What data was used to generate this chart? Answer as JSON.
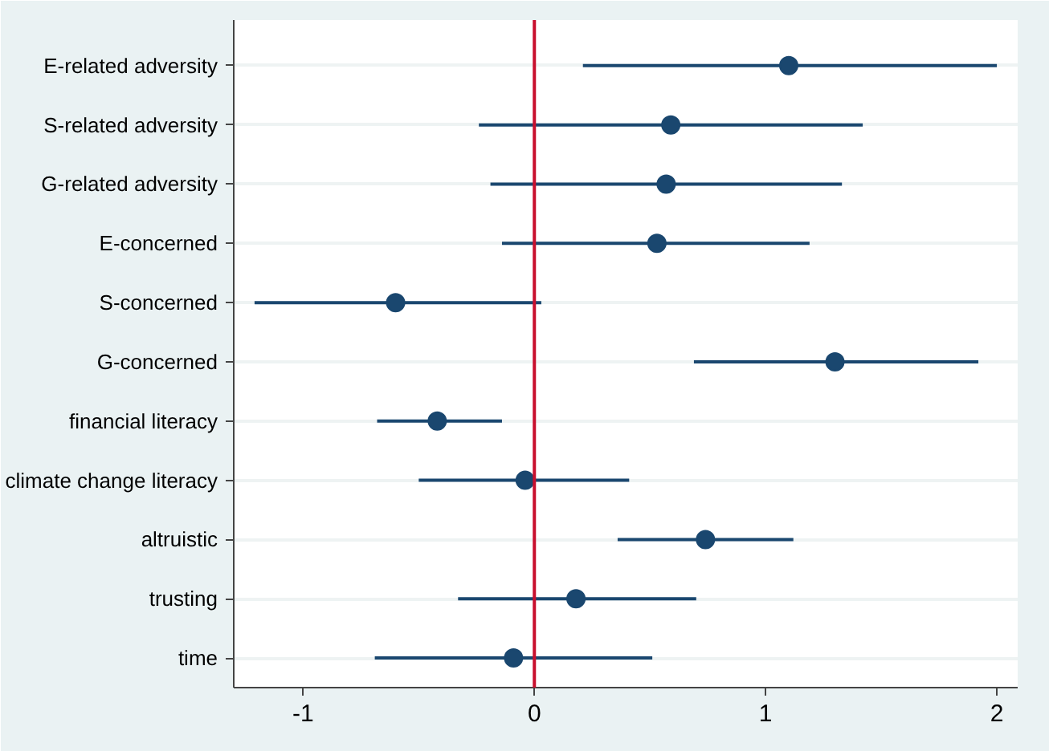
{
  "chart_data": {
    "type": "scatter",
    "orientation": "horizontal",
    "categories": [
      "E-related adversity",
      "S-related adversity",
      "G-related adversity",
      "E-concerned",
      "S-concerned",
      "G-concerned",
      "financial literacy",
      "climate change literacy",
      "altruistic",
      "trusting",
      "time"
    ],
    "color": "#1a476f",
    "values": [
      1.1,
      0.59,
      0.57,
      0.53,
      -0.6,
      1.3,
      -0.42,
      -0.04,
      0.74,
      0.18,
      -0.09
    ],
    "errors": [
      [
        0.21,
        2.0
      ],
      [
        -0.24,
        1.42
      ],
      [
        -0.19,
        1.33
      ],
      [
        -0.14,
        1.19
      ],
      [
        -1.21,
        0.03
      ],
      [
        0.69,
        1.92
      ],
      [
        -0.68,
        -0.14
      ],
      [
        -0.5,
        0.41
      ],
      [
        0.36,
        1.12
      ],
      [
        -0.33,
        0.7
      ],
      [
        -0.69,
        0.51
      ]
    ],
    "xlim": [
      -1.3,
      2.09
    ],
    "xticks": [
      -1,
      0,
      1,
      2
    ],
    "grid": "y",
    "marker": "circle",
    "ref_lines": [
      {
        "axis": "x",
        "value": 0,
        "color": "#c8102e"
      }
    ]
  }
}
